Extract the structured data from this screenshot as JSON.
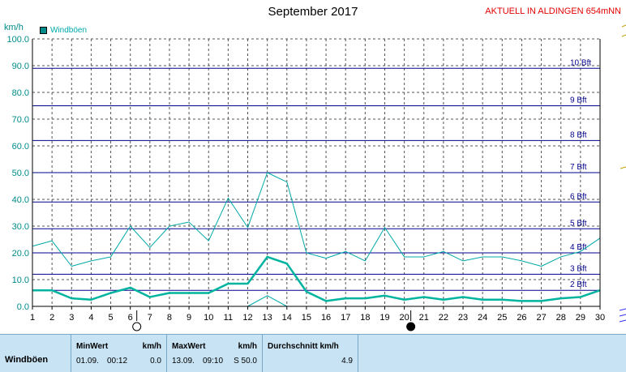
{
  "header": {
    "title": "September 2017",
    "location": "AKTUELL IN ALDINGEN 654mNN",
    "unit": "km/h",
    "legend_label": "Windböen"
  },
  "colors": {
    "series": "#00a8a8",
    "series_bold": "#00b4a0",
    "grid": "#555555",
    "beaufort": "#00008b",
    "stats_bg": "#c8e4f4"
  },
  "chart_data": {
    "type": "line",
    "title": "September 2017",
    "ylabel": "km/h",
    "xlabel": "",
    "x": [
      1,
      2,
      3,
      4,
      5,
      6,
      7,
      8,
      9,
      10,
      11,
      12,
      13,
      14,
      15,
      16,
      17,
      18,
      19,
      20,
      21,
      22,
      23,
      24,
      25,
      26,
      27,
      28,
      29,
      30
    ],
    "xlim": [
      1,
      30
    ],
    "ylim": [
      0,
      100
    ],
    "y_ticks": [
      "0.0",
      "10.0",
      "20.0",
      "30.0",
      "40.0",
      "50.0",
      "60.0",
      "70.0",
      "80.0",
      "90.0",
      "100.0"
    ],
    "x_ticks": [
      "1",
      "2",
      "3",
      "4",
      "5",
      "6",
      "7",
      "8",
      "9",
      "10",
      "11",
      "12",
      "13",
      "14",
      "15",
      "16",
      "17",
      "18",
      "19",
      "20",
      "21",
      "22",
      "23",
      "24",
      "25",
      "26",
      "27",
      "28",
      "29",
      "30"
    ],
    "grid": true,
    "legend": "top-left",
    "series": [
      {
        "name": "Windböen",
        "style": "max",
        "values": [
          22.5,
          24.5,
          15,
          17,
          18.5,
          30,
          22,
          30,
          31.5,
          24.5,
          40.5,
          29.5,
          50,
          46.5,
          20,
          18,
          20.5,
          17,
          29.5,
          18.5,
          18.5,
          20.5,
          17,
          18.5,
          18.5,
          17,
          15,
          18.5,
          20.5,
          25.5
        ]
      },
      {
        "name": "Windböen",
        "style": "average",
        "values": [
          6,
          6,
          3,
          2.5,
          5,
          7,
          3.5,
          5,
          5,
          5,
          8.5,
          8.5,
          18.5,
          16,
          5.5,
          2,
          3,
          3,
          4,
          2.5,
          3.5,
          2.5,
          3.5,
          2.5,
          2.5,
          2,
          2,
          3,
          3.5,
          6
        ]
      },
      {
        "name": "Windböen",
        "style": "min",
        "values": [
          0,
          0,
          0,
          0,
          0,
          0,
          0,
          0,
          0,
          0,
          0,
          0,
          4,
          0,
          0,
          0,
          0,
          0,
          0,
          0,
          0,
          0,
          0,
          0,
          0,
          0,
          0,
          0,
          0,
          0
        ]
      }
    ],
    "beaufort_lines": [
      {
        "label": "2 Bft",
        "value": 6
      },
      {
        "label": "3 Bft",
        "value": 12
      },
      {
        "label": "4 Bft",
        "value": 20
      },
      {
        "label": "5 Bft",
        "value": 29
      },
      {
        "label": "6 Bft",
        "value": 39
      },
      {
        "label": "7 Bft",
        "value": 50
      },
      {
        "label": "8 Bft",
        "value": 62
      },
      {
        "label": "9 Bft",
        "value": 75
      },
      {
        "label": "10 Bft",
        "value": 89
      }
    ],
    "moon_phases": [
      {
        "day": 6,
        "phase": "full-moon"
      },
      {
        "day": 20,
        "phase": "new-moon"
      }
    ]
  },
  "stats": {
    "row1_label": "Windböen",
    "min_header": "MinWert",
    "min_unit": "km/h",
    "min_date": "01.09.",
    "min_time": "00:12",
    "min_value": "0.0",
    "max_header": "MaxWert",
    "max_unit": "km/h",
    "max_date": "13.09.",
    "max_time": "09:10",
    "max_value": "S 50.0",
    "avg_header": "Durchschnitt km/h",
    "avg_value": "4.9"
  }
}
